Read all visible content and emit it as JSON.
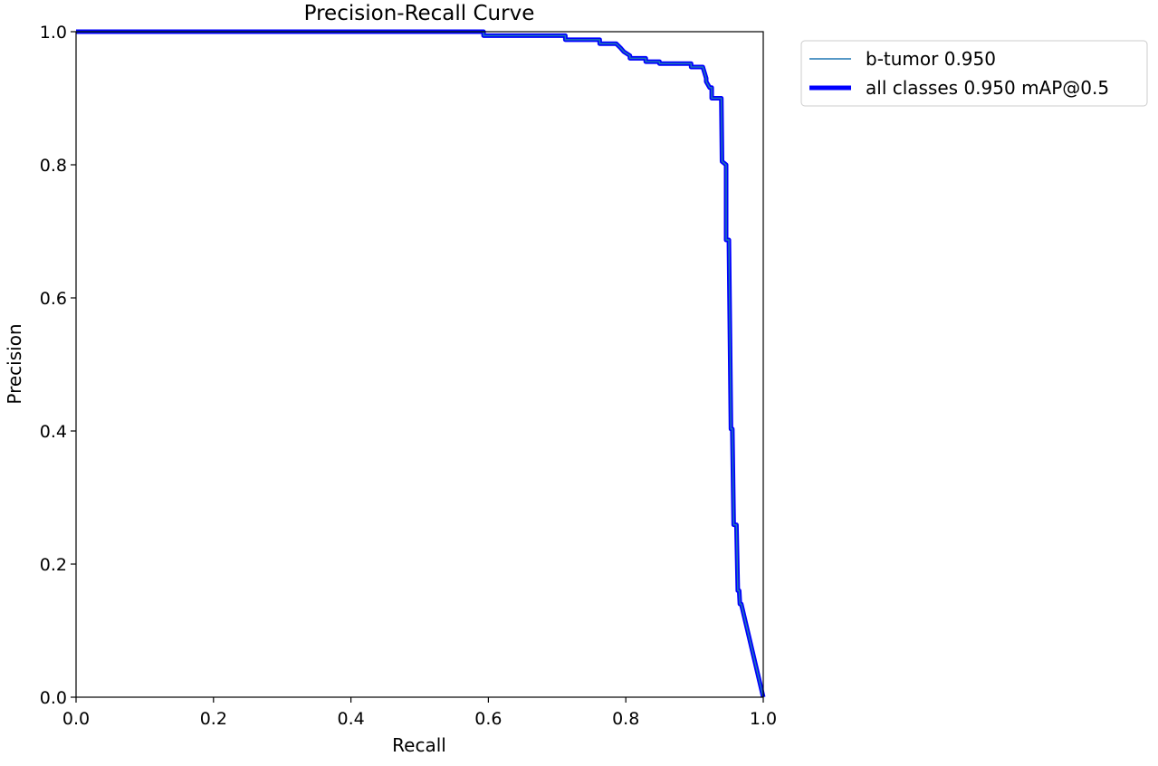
{
  "chart_data": {
    "type": "line",
    "title": "Precision-Recall Curve",
    "xlabel": "Recall",
    "ylabel": "Precision",
    "xlim": [
      0,
      1
    ],
    "ylim": [
      0,
      1
    ],
    "xticks": [
      "0.0",
      "0.2",
      "0.4",
      "0.6",
      "0.8",
      "1.0"
    ],
    "yticks": [
      "0.0",
      "0.2",
      "0.4",
      "0.6",
      "0.8",
      "1.0"
    ],
    "xtick_values": [
      0,
      0.2,
      0.4,
      0.6,
      0.8,
      1.0
    ],
    "ytick_values": [
      0,
      0.2,
      0.4,
      0.6,
      0.8,
      1.0
    ],
    "grid": false,
    "legend_position": "outside-top-right",
    "series": [
      {
        "name": "b-tumor 0.950",
        "color": "#1f77b4",
        "style": "thin",
        "x": [
          0,
          0.593,
          0.593,
          0.712,
          0.712,
          0.762,
          0.762,
          0.786,
          0.792,
          0.797,
          0.806,
          0.806,
          0.829,
          0.829,
          0.849,
          0.849,
          0.895,
          0.895,
          0.912,
          0.917,
          0.917,
          0.922,
          0.925,
          0.925,
          0.939,
          0.94,
          0.946,
          0.946,
          0.95,
          0.953,
          0.955,
          0.957,
          0.961,
          0.963,
          0.965,
          0.966,
          0.968,
          1.0
        ],
        "y": [
          1.0,
          1.0,
          0.994,
          0.994,
          0.988,
          0.988,
          0.982,
          0.982,
          0.976,
          0.97,
          0.964,
          0.96,
          0.96,
          0.955,
          0.955,
          0.952,
          0.952,
          0.947,
          0.947,
          0.93,
          0.925,
          0.916,
          0.916,
          0.9,
          0.9,
          0.805,
          0.8,
          0.687,
          0.687,
          0.403,
          0.403,
          0.259,
          0.259,
          0.16,
          0.16,
          0.14,
          0.14,
          0.0
        ]
      },
      {
        "name": "all classes 0.950 mAP@0.5",
        "color": "#0000ff",
        "style": "thick",
        "x": [
          0,
          0.593,
          0.593,
          0.712,
          0.712,
          0.762,
          0.762,
          0.786,
          0.792,
          0.797,
          0.806,
          0.806,
          0.829,
          0.829,
          0.849,
          0.849,
          0.895,
          0.895,
          0.912,
          0.917,
          0.917,
          0.922,
          0.925,
          0.925,
          0.939,
          0.94,
          0.946,
          0.946,
          0.95,
          0.953,
          0.955,
          0.957,
          0.961,
          0.963,
          0.965,
          0.966,
          0.968,
          1.0
        ],
        "y": [
          1.0,
          1.0,
          0.994,
          0.994,
          0.988,
          0.988,
          0.982,
          0.982,
          0.976,
          0.97,
          0.964,
          0.96,
          0.96,
          0.955,
          0.955,
          0.952,
          0.952,
          0.947,
          0.947,
          0.93,
          0.925,
          0.916,
          0.916,
          0.9,
          0.9,
          0.805,
          0.8,
          0.687,
          0.687,
          0.403,
          0.403,
          0.259,
          0.259,
          0.16,
          0.16,
          0.14,
          0.14,
          0.0
        ]
      }
    ]
  }
}
